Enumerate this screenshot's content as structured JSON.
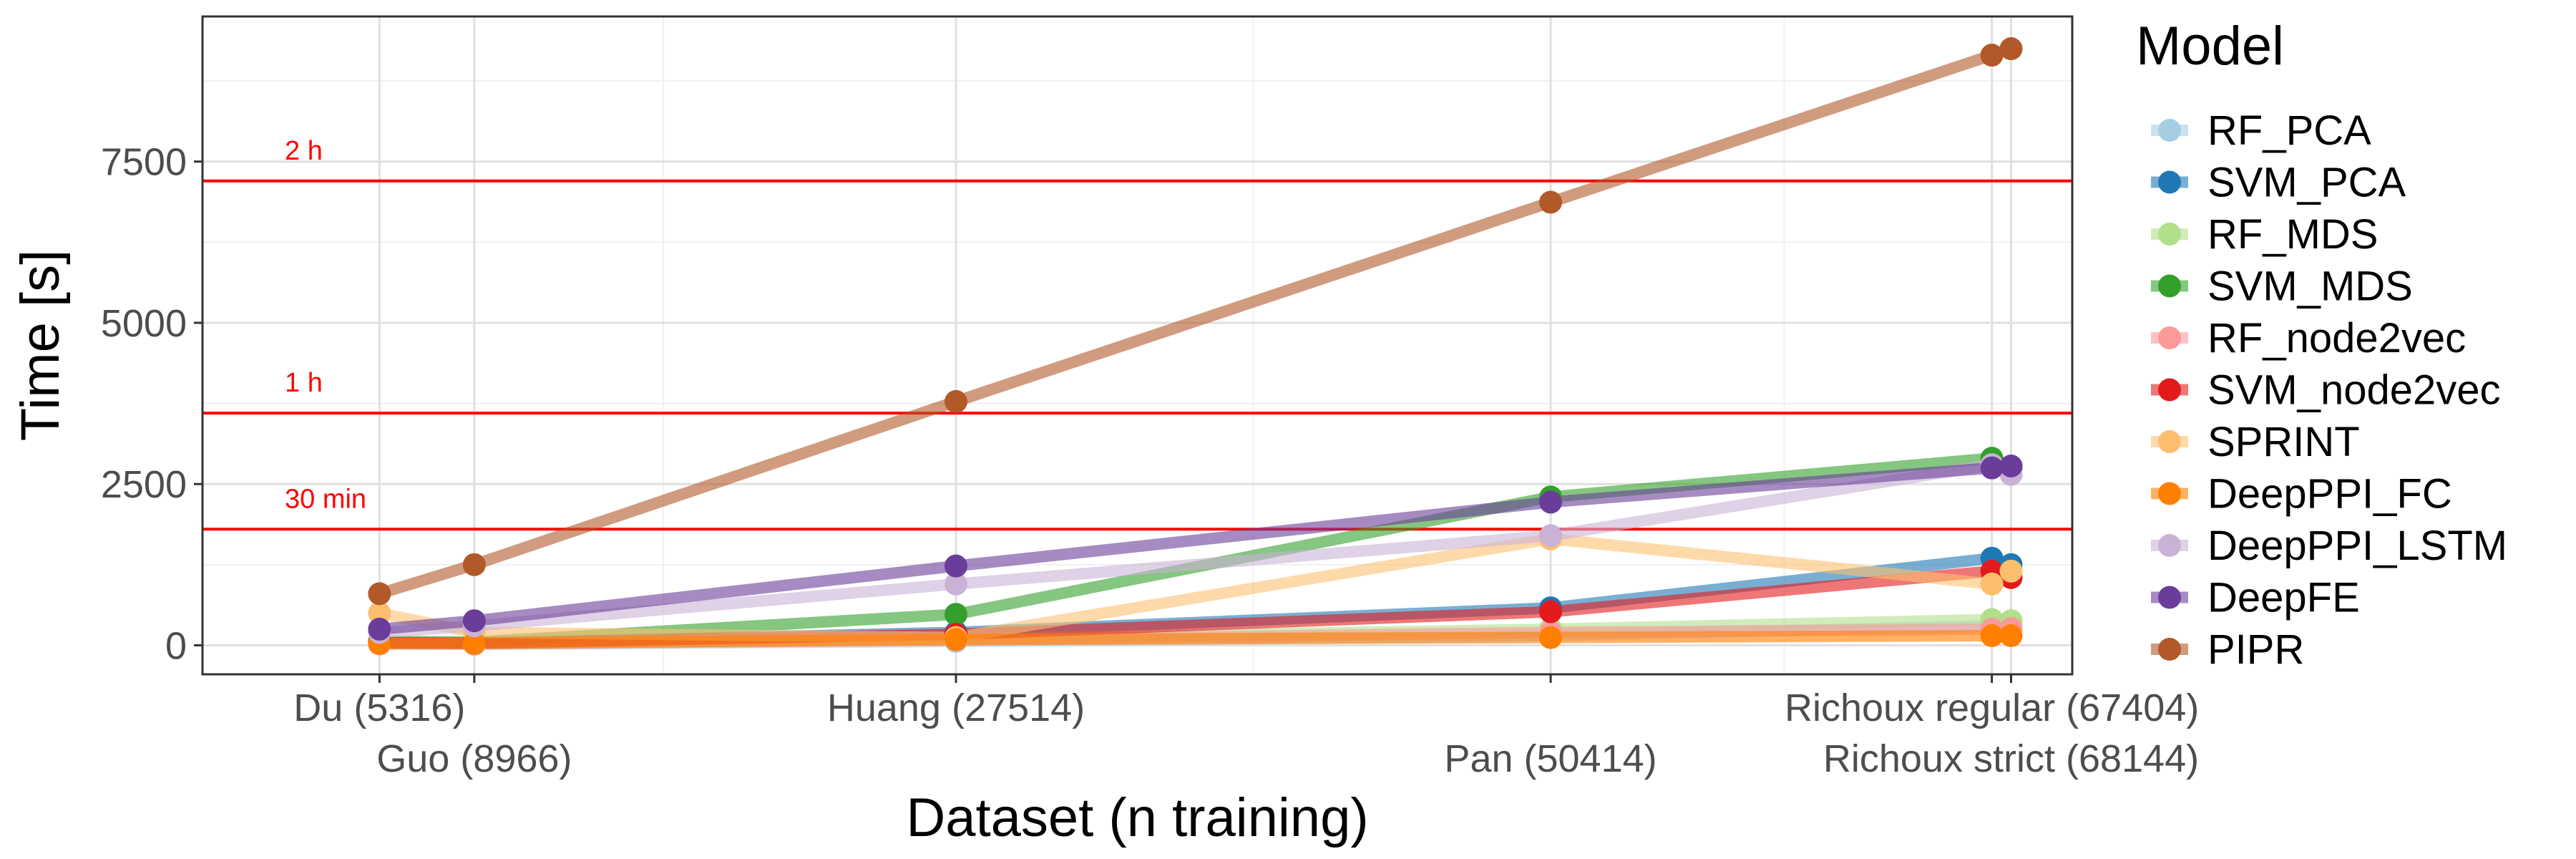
{
  "chart_data": {
    "type": "line",
    "xlabel": "Dataset (n training)",
    "ylabel": "Time [s]",
    "xlim": [
      -1500,
      70500
    ],
    "ylim": [
      -450,
      9750
    ],
    "y_ticks": [
      0,
      2500,
      5000,
      7500
    ],
    "y_tick_labels": [
      "0",
      "2500",
      "5000",
      "7500"
    ],
    "y_minor_ticks": [
      1250,
      3750,
      6250,
      8750
    ],
    "grid": true,
    "x_ticks": [
      {
        "x": 5316,
        "label": "Du (5316)",
        "row": 0
      },
      {
        "x": 8966,
        "label": "Guo (8966)",
        "row": 1
      },
      {
        "x": 27514,
        "label": "Huang (27514)",
        "row": 0
      },
      {
        "x": 50414,
        "label": "Pan (50414)",
        "row": 1
      },
      {
        "x": 67404,
        "label": "Richoux regular (67404)",
        "row": 0
      },
      {
        "x": 68144,
        "label": "Richoux strict (68144)",
        "row": 1
      }
    ],
    "x": [
      5316,
      8966,
      27514,
      50414,
      67404,
      68144
    ],
    "x_minor_ticks": [
      16240,
      38964,
      59409
    ],
    "reference_lines": [
      {
        "y": 7200,
        "label": "2 h",
        "color": "#ff0000"
      },
      {
        "y": 3600,
        "label": "1 h",
        "color": "#ff0000"
      },
      {
        "y": 1800,
        "label": "30 min",
        "color": "#ff0000"
      }
    ],
    "legend_title": "Model",
    "legend_position": "right",
    "series": [
      {
        "name": "RF_PCA",
        "color": "#A6CEE3",
        "values": [
          20,
          15,
          60,
          150,
          300,
          320
        ]
      },
      {
        "name": "SVM_PCA",
        "color": "#1F78B4",
        "values": [
          40,
          30,
          200,
          580,
          1350,
          1250
        ]
      },
      {
        "name": "RF_MDS",
        "color": "#B2DF8A",
        "values": [
          30,
          25,
          100,
          250,
          400,
          380
        ]
      },
      {
        "name": "SVM_MDS",
        "color": "#33A02C",
        "values": [
          60,
          50,
          480,
          2300,
          2900,
          2750
        ]
      },
      {
        "name": "RF_node2vec",
        "color": "#FB9A99",
        "values": [
          20,
          20,
          80,
          200,
          250,
          260
        ]
      },
      {
        "name": "SVM_node2vec",
        "color": "#E31A1C",
        "values": [
          40,
          35,
          170,
          520,
          1150,
          1050
        ]
      },
      {
        "name": "SPRINT",
        "color": "#FDBF6F",
        "values": [
          500,
          200,
          120,
          1650,
          950,
          1150
        ]
      },
      {
        "name": "DeepPPI_FC",
        "color": "#FF7F00",
        "values": [
          30,
          30,
          90,
          120,
          150,
          150
        ]
      },
      {
        "name": "DeepPPI_LSTM",
        "color": "#CAB2D6",
        "values": [
          200,
          300,
          950,
          1700,
          2800,
          2650
        ]
      },
      {
        "name": "DeepFE",
        "color": "#6A3D9A",
        "values": [
          250,
          380,
          1230,
          2220,
          2750,
          2780
        ]
      },
      {
        "name": "PIPR",
        "color": "#B15928",
        "values": [
          800,
          1250,
          3780,
          6870,
          9150,
          9250
        ]
      }
    ]
  }
}
